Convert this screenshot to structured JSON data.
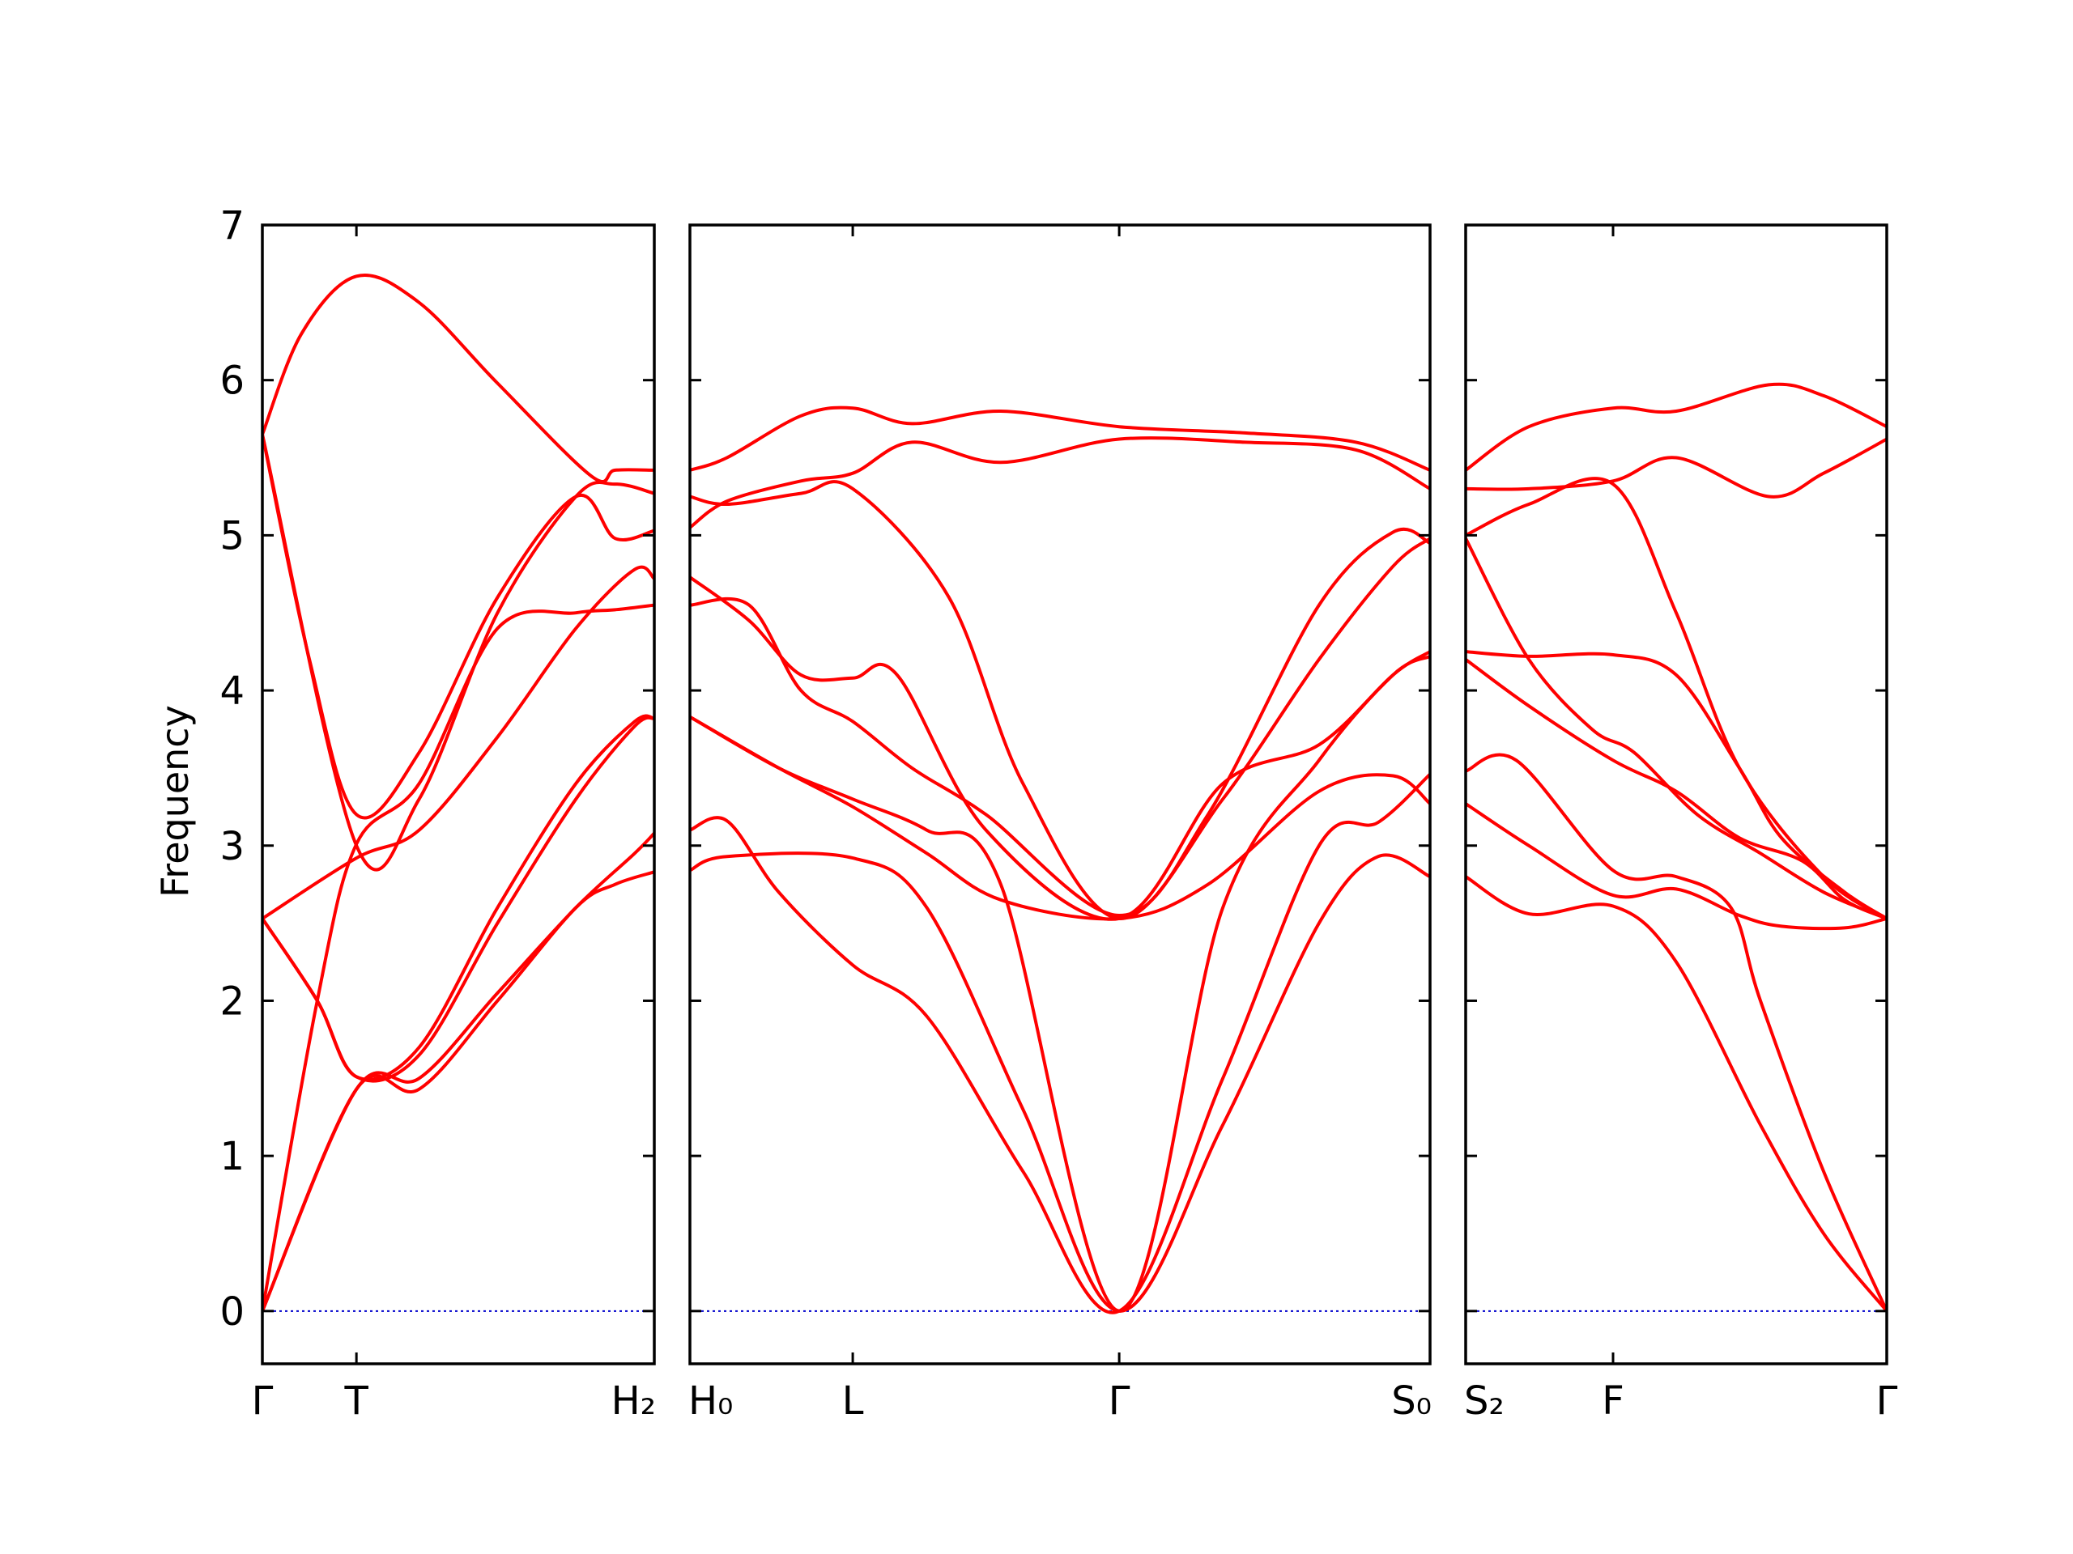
{
  "chart_data": {
    "type": "line",
    "ylabel": "Frequency",
    "ylim": [
      -0.34,
      7.0
    ],
    "yticks": [
      0,
      1,
      2,
      3,
      4,
      5,
      6,
      7
    ],
    "line_color": "#ff0000",
    "zero_line_color": "#0000cc",
    "panels": [
      {
        "name": "Γ-T-H2",
        "xlim": [
          0,
          1
        ],
        "ticks": [
          {
            "x": 0.0,
            "label": "Γ"
          },
          {
            "x": 0.24,
            "label": "T"
          },
          {
            "x": 1.0,
            "label": "H₂"
          }
        ],
        "series": [
          {
            "x": [
              0,
              0.24,
              0.4,
              0.6,
              0.8,
              0.9,
              1.0
            ],
            "y": [
              0.0,
              1.43,
              1.43,
              2.0,
              2.6,
              2.75,
              2.83
            ]
          },
          {
            "x": [
              0,
              0.24,
              0.4,
              0.6,
              0.8,
              0.95,
              1.0
            ],
            "y": [
              0.0,
              1.43,
              1.5,
              2.05,
              2.6,
              2.95,
              3.08
            ]
          },
          {
            "x": [
              0,
              0.14,
              0.24,
              0.4,
              0.6,
              0.8,
              0.95,
              1.0
            ],
            "y": [
              2.53,
              2.0,
              1.51,
              1.7,
              2.6,
              3.4,
              3.8,
              3.82
            ]
          },
          {
            "x": [
              0,
              0.14,
              0.24,
              0.4,
              0.6,
              0.8,
              0.95,
              1.0
            ],
            "y": [
              2.53,
              2.0,
              1.51,
              1.65,
              2.5,
              3.3,
              3.77,
              3.82
            ]
          },
          {
            "x": [
              0,
              0.24,
              0.4,
              0.6,
              0.8,
              0.95,
              1.0
            ],
            "y": [
              2.53,
              2.92,
              3.1,
              3.7,
              4.4,
              4.78,
              4.72
            ]
          },
          {
            "x": [
              0,
              0.14,
              0.24,
              0.4,
              0.6,
              0.8,
              0.9,
              1.0
            ],
            "y": [
              0.0,
              2.0,
              3.01,
              3.4,
              4.4,
              4.5,
              4.52,
              4.55
            ]
          },
          {
            "x": [
              0,
              0.24,
              0.4,
              0.6,
              0.8,
              0.9,
              1.0
            ],
            "y": [
              5.65,
              3.0,
              3.3,
              4.5,
              5.25,
              5.33,
              5.27
            ]
          },
          {
            "x": [
              0,
              0.12,
              0.24,
              0.4,
              0.6,
              0.8,
              0.9,
              1.0
            ],
            "y": [
              5.65,
              4.2,
              3.2,
              3.6,
              4.6,
              5.25,
              4.98,
              5.03
            ]
          },
          {
            "x": [
              0,
              0.1,
              0.24,
              0.4,
              0.6,
              0.84,
              0.9,
              1.0
            ],
            "y": [
              5.65,
              6.3,
              6.67,
              6.5,
              5.98,
              5.38,
              5.42,
              5.42
            ]
          }
        ]
      },
      {
        "name": "H0-L-Γ-S0",
        "xlim": [
          0,
          1
        ],
        "ticks": [
          {
            "x": 0.0,
            "label": "H₀"
          },
          {
            "x": 0.22,
            "label": "L"
          },
          {
            "x": 0.58,
            "label": "Γ"
          },
          {
            "x": 1.0,
            "label": "S₀"
          }
        ],
        "series": [
          {
            "x": [
              0,
              0.05,
              0.22,
              0.32,
              0.45,
              0.58,
              0.72,
              0.85,
              0.93,
              1.0
            ],
            "y": [
              2.84,
              2.93,
              2.92,
              2.6,
              1.3,
              0.0,
              1.2,
              2.5,
              2.93,
              2.8
            ]
          },
          {
            "x": [
              0,
              0.05,
              0.12,
              0.22,
              0.32,
              0.45,
              0.58,
              0.72,
              0.85,
              0.93,
              1.0
            ],
            "y": [
              3.1,
              3.16,
              2.7,
              2.23,
              1.9,
              0.9,
              0.0,
              1.5,
              3.0,
              3.15,
              3.46
            ]
          },
          {
            "x": [
              0,
              0.12,
              0.22,
              0.32,
              0.42,
              0.58,
              0.7,
              0.85,
              0.95,
              1.0
            ],
            "y": [
              3.83,
              3.5,
              3.25,
              2.95,
              2.65,
              2.53,
              2.75,
              3.35,
              3.45,
              3.27
            ]
          },
          {
            "x": [
              0,
              0.12,
              0.22,
              0.32,
              0.42,
              0.58,
              0.72,
              0.85,
              0.95,
              1.0
            ],
            "y": [
              3.83,
              3.5,
              3.3,
              3.1,
              2.75,
              0.0,
              2.6,
              3.55,
              4.1,
              4.22
            ]
          },
          {
            "x": [
              0,
              0.08,
              0.15,
              0.22,
              0.28,
              0.4,
              0.58,
              0.72,
              0.85,
              0.95,
              1.0
            ],
            "y": [
              4.73,
              4.45,
              4.1,
              4.08,
              4.1,
              3.1,
              2.53,
              3.4,
              3.65,
              4.1,
              4.25
            ]
          },
          {
            "x": [
              0,
              0.08,
              0.15,
              0.22,
              0.3,
              0.4,
              0.58,
              0.7,
              0.85,
              0.95,
              1.0
            ],
            "y": [
              4.55,
              4.55,
              4.0,
              3.8,
              3.5,
              3.2,
              2.55,
              3.2,
              4.55,
              5.02,
              4.95
            ]
          },
          {
            "x": [
              0,
              0.05,
              0.15,
              0.22,
              0.35,
              0.45,
              0.58,
              0.72,
              0.85,
              0.95,
              1.0
            ],
            "y": [
              5.25,
              5.2,
              5.27,
              5.3,
              4.6,
              3.4,
              2.53,
              3.3,
              4.2,
              4.8,
              4.98
            ]
          },
          {
            "x": [
              0,
              0.05,
              0.15,
              0.22,
              0.3,
              0.42,
              0.58,
              0.75,
              0.9,
              1.0
            ],
            "y": [
              5.05,
              5.22,
              5.35,
              5.4,
              5.6,
              5.47,
              5.62,
              5.6,
              5.55,
              5.3
            ]
          },
          {
            "x": [
              0,
              0.05,
              0.15,
              0.22,
              0.3,
              0.42,
              0.58,
              0.75,
              0.9,
              1.0
            ],
            "y": [
              5.42,
              5.5,
              5.77,
              5.82,
              5.72,
              5.8,
              5.7,
              5.66,
              5.6,
              5.42
            ]
          }
        ]
      },
      {
        "name": "S2-F-Γ",
        "xlim": [
          0,
          1
        ],
        "ticks": [
          {
            "x": 0.0,
            "label": "S₂"
          },
          {
            "x": 0.35,
            "label": "F"
          },
          {
            "x": 1.0,
            "label": "Γ"
          }
        ],
        "series": [
          {
            "x": [
              0,
              0.15,
              0.35,
              0.5,
              0.7,
              0.85,
              1.0
            ],
            "y": [
              2.8,
              2.56,
              2.61,
              2.25,
              1.2,
              0.5,
              0.0
            ]
          },
          {
            "x": [
              0,
              0.15,
              0.35,
              0.5,
              0.65,
              0.75,
              0.9,
              1.0
            ],
            "y": [
              3.27,
              3.0,
              2.68,
              2.72,
              2.55,
              2.48,
              2.47,
              2.53
            ]
          },
          {
            "x": [
              0,
              0.12,
              0.35,
              0.5,
              0.63,
              0.7,
              0.85,
              1.0
            ],
            "y": [
              3.48,
              3.55,
              2.84,
              2.8,
              2.6,
              2.0,
              0.9,
              0.0
            ]
          },
          {
            "x": [
              0,
              0.15,
              0.35,
              0.5,
              0.65,
              0.8,
              0.9,
              1.0
            ],
            "y": [
              4.2,
              3.9,
              3.55,
              3.35,
              3.05,
              2.9,
              2.65,
              2.53
            ]
          },
          {
            "x": [
              0,
              0.15,
              0.35,
              0.5,
              0.65,
              0.75,
              0.9,
              1.0
            ],
            "y": [
              4.25,
              4.22,
              4.23,
              4.1,
              3.5,
              3.05,
              2.7,
              2.53
            ]
          },
          {
            "x": [
              0,
              0.15,
              0.3,
              0.4,
              0.55,
              0.7,
              0.85,
              1.0
            ],
            "y": [
              4.98,
              4.2,
              3.75,
              3.6,
              3.2,
              2.95,
              2.7,
              2.53
            ]
          },
          {
            "x": [
              0,
              0.15,
              0.35,
              0.5,
              0.65,
              0.85,
              1.0
            ],
            "y": [
              5.0,
              5.2,
              5.33,
              4.5,
              3.5,
              2.8,
              2.53
            ]
          },
          {
            "x": [
              0,
              0.15,
              0.35,
              0.5,
              0.72,
              0.85,
              1.0
            ],
            "y": [
              5.3,
              5.3,
              5.35,
              5.5,
              5.25,
              5.4,
              5.62
            ]
          },
          {
            "x": [
              0,
              0.15,
              0.35,
              0.5,
              0.72,
              0.85,
              1.0
            ],
            "y": [
              5.42,
              5.7,
              5.82,
              5.8,
              5.97,
              5.9,
              5.7
            ]
          }
        ]
      }
    ]
  }
}
